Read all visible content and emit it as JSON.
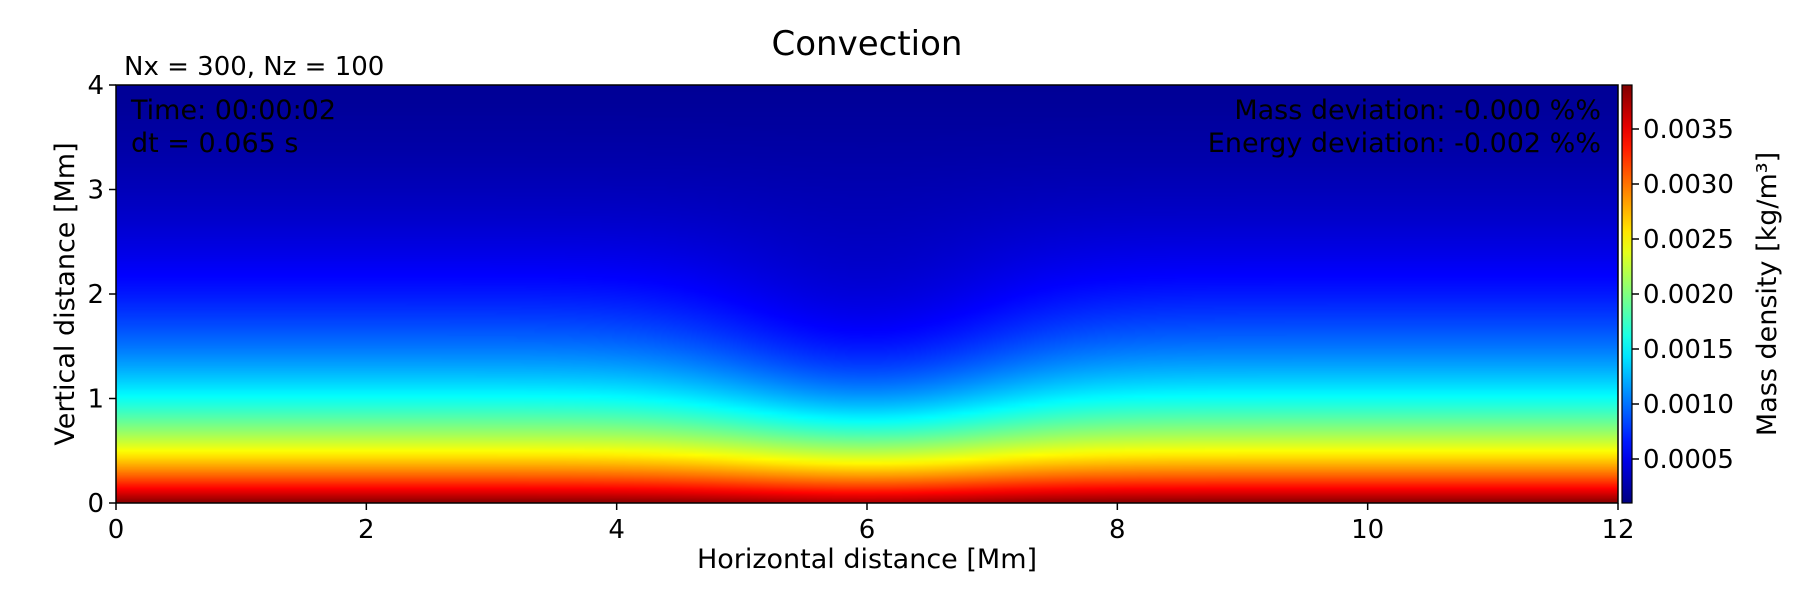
{
  "chart_data": {
    "type": "heatmap",
    "title": "Convection",
    "subtitle": "Nx = 300, Nz = 100",
    "xlabel": "Horizontal distance [Mm]",
    "ylabel": "Vertical distance [Mm]",
    "xlim": [
      0,
      12
    ],
    "ylim": [
      0,
      4
    ],
    "xticks": [
      "0",
      "2",
      "4",
      "6",
      "8",
      "10",
      "12"
    ],
    "yticks": [
      "0",
      "1",
      "2",
      "3",
      "4"
    ],
    "annotations": {
      "time": "Time: 00:00:02",
      "dt": "dt = 0.065 s",
      "mass_dev": "Mass deviation: -0.000 %%",
      "energy_dev": "Energy deviation: -0.002 %%"
    },
    "colorbar": {
      "label": "Mass density [kg/m³]",
      "colormap": "jet",
      "range": [
        0.0001,
        0.0039
      ],
      "ticks": [
        "0.0005",
        "0.0010",
        "0.0015",
        "0.0020",
        "0.0025",
        "0.0030",
        "0.0035"
      ]
    },
    "field_description_values": {
      "bottom_density": 0.0039,
      "top_density": 0.0001,
      "dip_center_x": 6,
      "dip_width": 1.2
    },
    "grid": false
  }
}
